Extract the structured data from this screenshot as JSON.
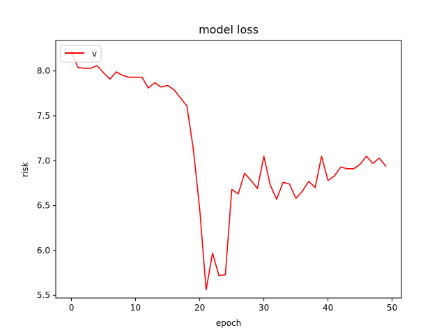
{
  "chart_data": {
    "type": "line",
    "title": "model loss",
    "xlabel": "epoch",
    "ylabel": "risk",
    "xlim": [
      -2.45,
      51.45
    ],
    "ylim": [
      5.47,
      8.34
    ],
    "xticks": [
      0,
      10,
      20,
      30,
      40,
      50
    ],
    "yticks": [
      5.5,
      6.0,
      6.5,
      7.0,
      7.5,
      8.0
    ],
    "xtick_labels": [
      "0",
      "10",
      "20",
      "30",
      "40",
      "50"
    ],
    "ytick_labels": [
      "5.5",
      "6.0",
      "6.5",
      "7.0",
      "7.5",
      "8.0"
    ],
    "grid": false,
    "legend_position": "top-left",
    "series": [
      {
        "name": "v",
        "color": "#ff0000",
        "x": [
          0,
          1,
          2,
          3,
          4,
          5,
          6,
          7,
          8,
          9,
          10,
          11,
          12,
          13,
          14,
          15,
          16,
          17,
          18,
          19,
          20,
          21,
          22,
          23,
          24,
          25,
          26,
          27,
          28,
          29,
          30,
          31,
          32,
          33,
          34,
          35,
          36,
          37,
          38,
          39,
          40,
          41,
          42,
          43,
          44,
          45,
          46,
          47,
          48,
          49
        ],
        "y": [
          8.22,
          8.04,
          8.03,
          8.03,
          8.06,
          7.98,
          7.91,
          7.99,
          7.95,
          7.93,
          7.93,
          7.93,
          7.81,
          7.87,
          7.82,
          7.84,
          7.79,
          7.7,
          7.61,
          7.13,
          6.46,
          5.56,
          5.97,
          5.72,
          5.73,
          6.68,
          6.63,
          6.86,
          6.78,
          6.69,
          7.05,
          6.73,
          6.57,
          6.76,
          6.74,
          6.58,
          6.66,
          6.77,
          6.7,
          7.05,
          6.78,
          6.83,
          6.93,
          6.91,
          6.91,
          6.96,
          7.05,
          6.97,
          7.03,
          6.94
        ]
      }
    ]
  }
}
